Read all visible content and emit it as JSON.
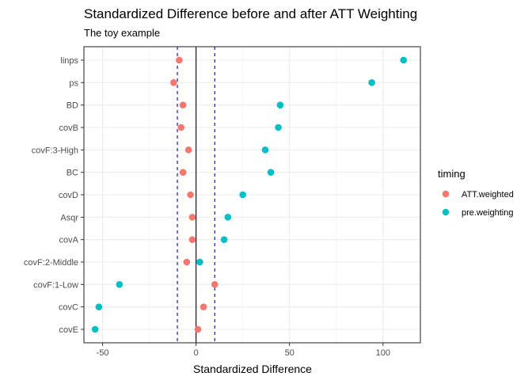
{
  "chart_data": {
    "type": "scatter",
    "title": "Standardized Difference before and after ATT Weighting",
    "subtitle": "The toy example",
    "xlabel": "Standardized Difference",
    "ylabel": "",
    "xlim": [
      -60,
      120
    ],
    "x_ticks": [
      -50,
      0,
      50,
      100
    ],
    "x_tick_labels": [
      "-50",
      "0",
      "50",
      "100"
    ],
    "categories": [
      "linps",
      "ps",
      "BD",
      "covB",
      "covF:3-High",
      "BC",
      "covD",
      "Asqr",
      "covA",
      "covF:2-Middle",
      "covF:1-Low",
      "covC",
      "covE"
    ],
    "series": [
      {
        "name": "ATT.weighted",
        "color": "#F8766D",
        "values": [
          -9,
          -12,
          -7,
          -8,
          -4,
          -7,
          -3,
          -2,
          -2,
          -5,
          10,
          4,
          1
        ]
      },
      {
        "name": "pre.weighting",
        "color": "#00BFC4",
        "values": [
          111,
          94,
          45,
          44,
          37,
          40,
          25,
          17,
          15,
          2,
          -41,
          -52,
          -54
        ]
      }
    ],
    "reference_lines": {
      "solid": 0,
      "dashed": [
        -10,
        10
      ],
      "solid_color": "#000000",
      "dashed_color": "#0000CD"
    },
    "legend": {
      "title": "timing",
      "placement": "right"
    },
    "grid": true
  }
}
